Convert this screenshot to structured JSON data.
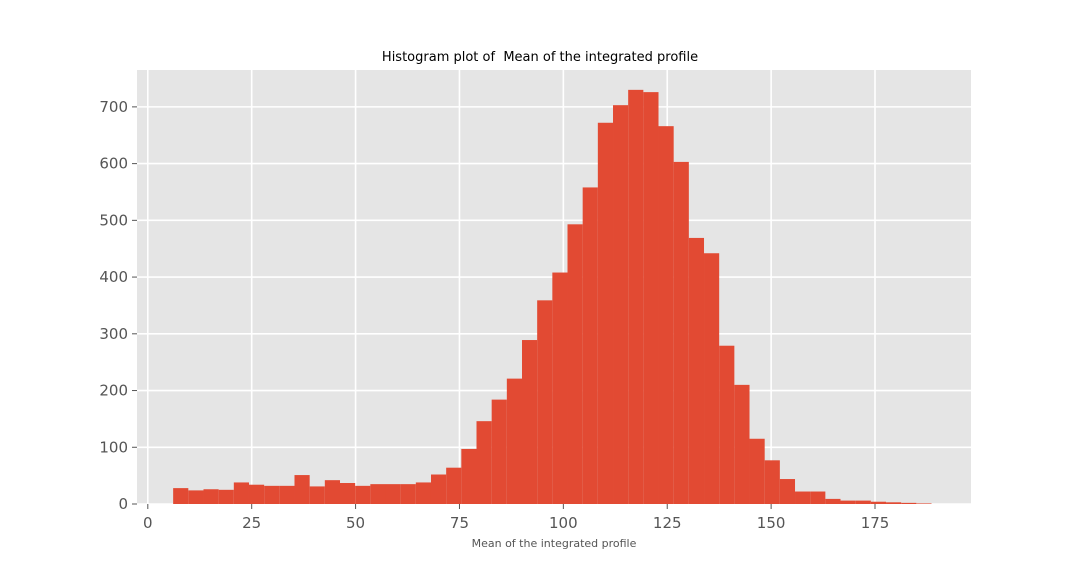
{
  "colors": {
    "plot_background": "#e5e5e5",
    "grid": "#ffffff",
    "bar_fill": "#e24a33",
    "tick_label": "#555555",
    "title": "#000000"
  },
  "chart_data": {
    "type": "bar",
    "title": "Histogram plot of  Mean of the integrated profile",
    "xlabel": "Mean of the integrated profile",
    "ylabel": "",
    "grid": true,
    "xlim": [
      -2.6,
      198.1
    ],
    "ylim": [
      0,
      765
    ],
    "xticks": [
      0,
      25,
      50,
      75,
      100,
      125,
      150,
      175
    ],
    "yticks": [
      0,
      100,
      200,
      300,
      400,
      500,
      600,
      700
    ],
    "bin_width": 3.65,
    "bin_edges_start": 6.1,
    "values": [
      28,
      24,
      26,
      25,
      38,
      34,
      32,
      32,
      51,
      31,
      42,
      37,
      32,
      35,
      35,
      35,
      38,
      52,
      64,
      97,
      146,
      184,
      221,
      289,
      359,
      408,
      493,
      558,
      672,
      703,
      730,
      726,
      666,
      603,
      469,
      442,
      279,
      210,
      115,
      77,
      44,
      22,
      22,
      9,
      6,
      6,
      4,
      3,
      2,
      1
    ]
  }
}
